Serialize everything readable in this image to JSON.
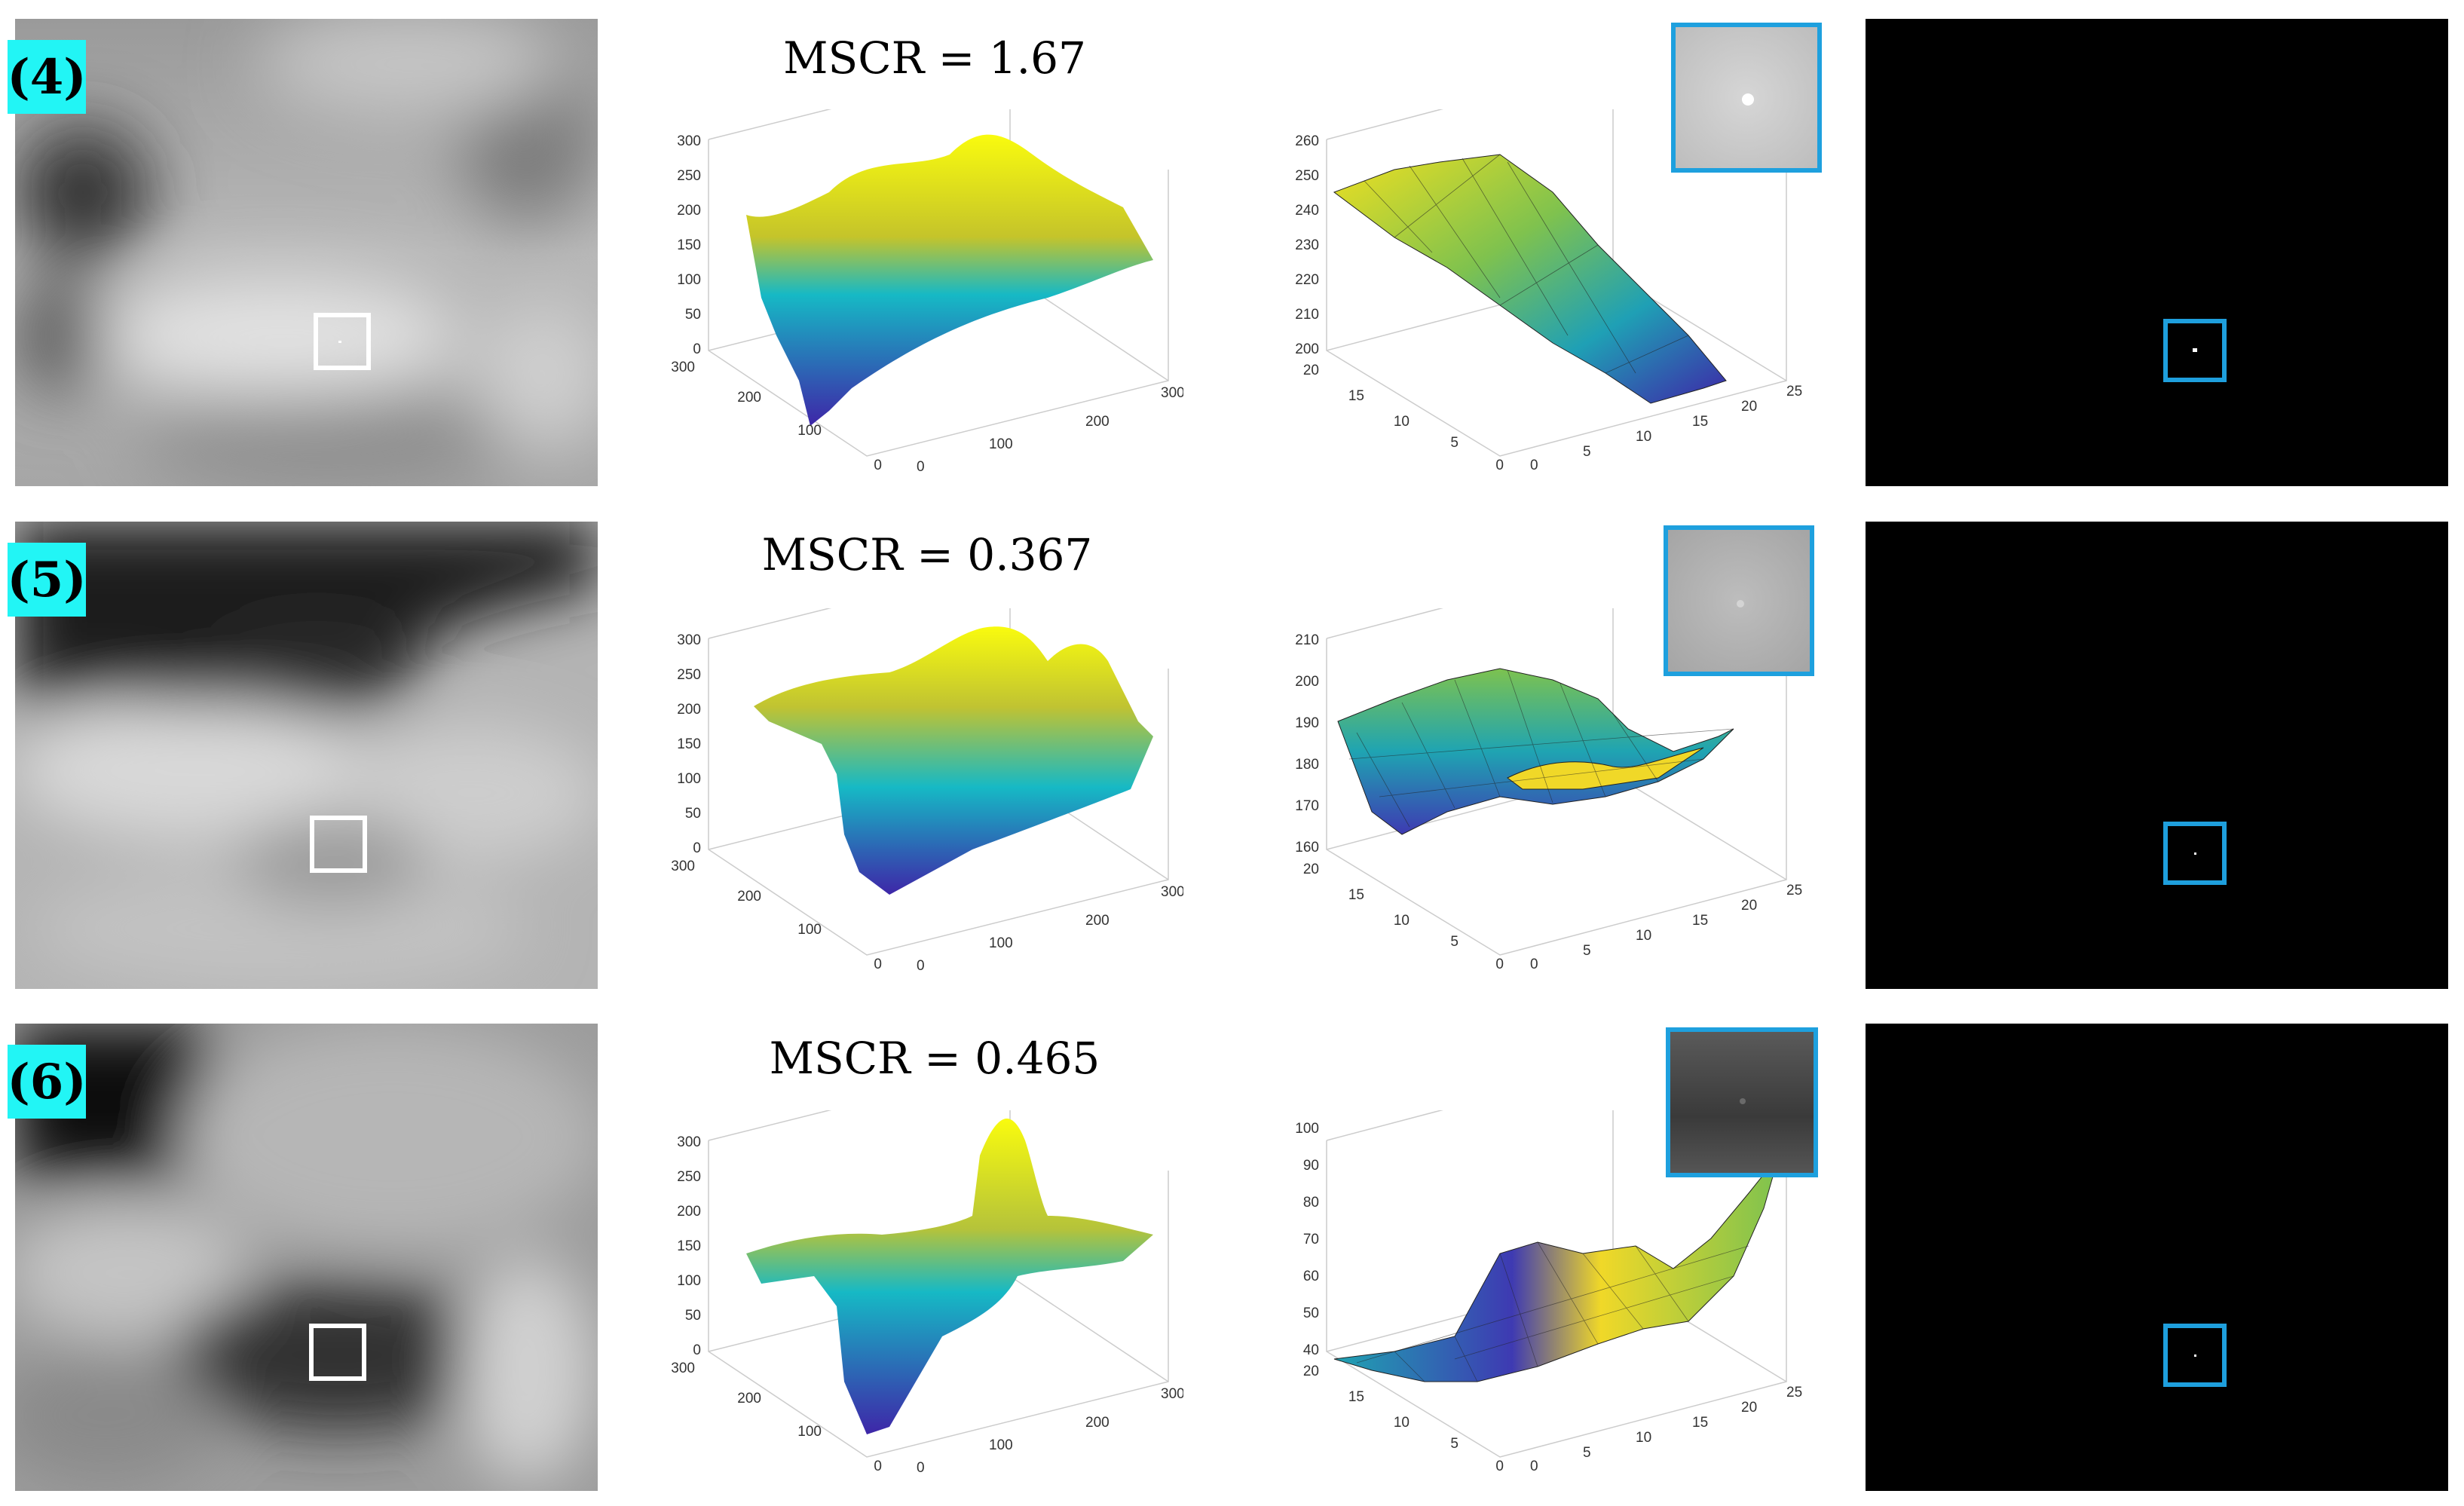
{
  "rows": [
    {
      "label": "(4)",
      "mscr_text": "MSCR = 1.67",
      "plot_full": {
        "z_ticks": [
          "300",
          "250",
          "200",
          "150",
          "100",
          "50",
          "0"
        ],
        "y_ticks": [
          "300",
          "200",
          "100",
          "0"
        ],
        "x_ticks": [
          "0",
          "100",
          "200",
          "300"
        ]
      },
      "plot_zoom": {
        "z_ticks": [
          "260",
          "250",
          "240",
          "230",
          "220",
          "210",
          "200"
        ],
        "y_ticks": [
          "20",
          "15",
          "10",
          "5",
          "0"
        ],
        "x_ticks": [
          "0",
          "5",
          "10",
          "15",
          "20",
          "25"
        ]
      }
    },
    {
      "label": "(5)",
      "mscr_text": "MSCR = 0.367",
      "plot_full": {
        "z_ticks": [
          "300",
          "250",
          "200",
          "150",
          "100",
          "50",
          "0"
        ],
        "y_ticks": [
          "300",
          "200",
          "100",
          "0"
        ],
        "x_ticks": [
          "0",
          "100",
          "200",
          "300"
        ]
      },
      "plot_zoom": {
        "z_ticks": [
          "210",
          "200",
          "190",
          "180",
          "170",
          "160"
        ],
        "y_ticks": [
          "20",
          "15",
          "10",
          "5",
          "0"
        ],
        "x_ticks": [
          "0",
          "5",
          "10",
          "15",
          "20",
          "25"
        ]
      }
    },
    {
      "label": "(6)",
      "mscr_text": "MSCR = 0.465",
      "plot_full": {
        "z_ticks": [
          "300",
          "250",
          "200",
          "150",
          "100",
          "50",
          "0"
        ],
        "y_ticks": [
          "300",
          "200",
          "100",
          "0"
        ],
        "x_ticks": [
          "0",
          "100",
          "200",
          "300"
        ]
      },
      "plot_zoom": {
        "z_ticks": [
          "100",
          "90",
          "80",
          "70",
          "60",
          "50",
          "40"
        ],
        "y_ticks": [
          "20",
          "15",
          "10",
          "5",
          "0"
        ],
        "x_ticks": [
          "0",
          "5",
          "10",
          "15",
          "20",
          "25"
        ]
      }
    }
  ],
  "colors": {
    "badge": "#22f5f5",
    "target_box_white": "#ffffff",
    "target_box_blue": "#1e9fdd",
    "surface_low": "#3e26a8",
    "surface_mid": "#16b9c5",
    "surface_high": "#f9fb0e"
  }
}
